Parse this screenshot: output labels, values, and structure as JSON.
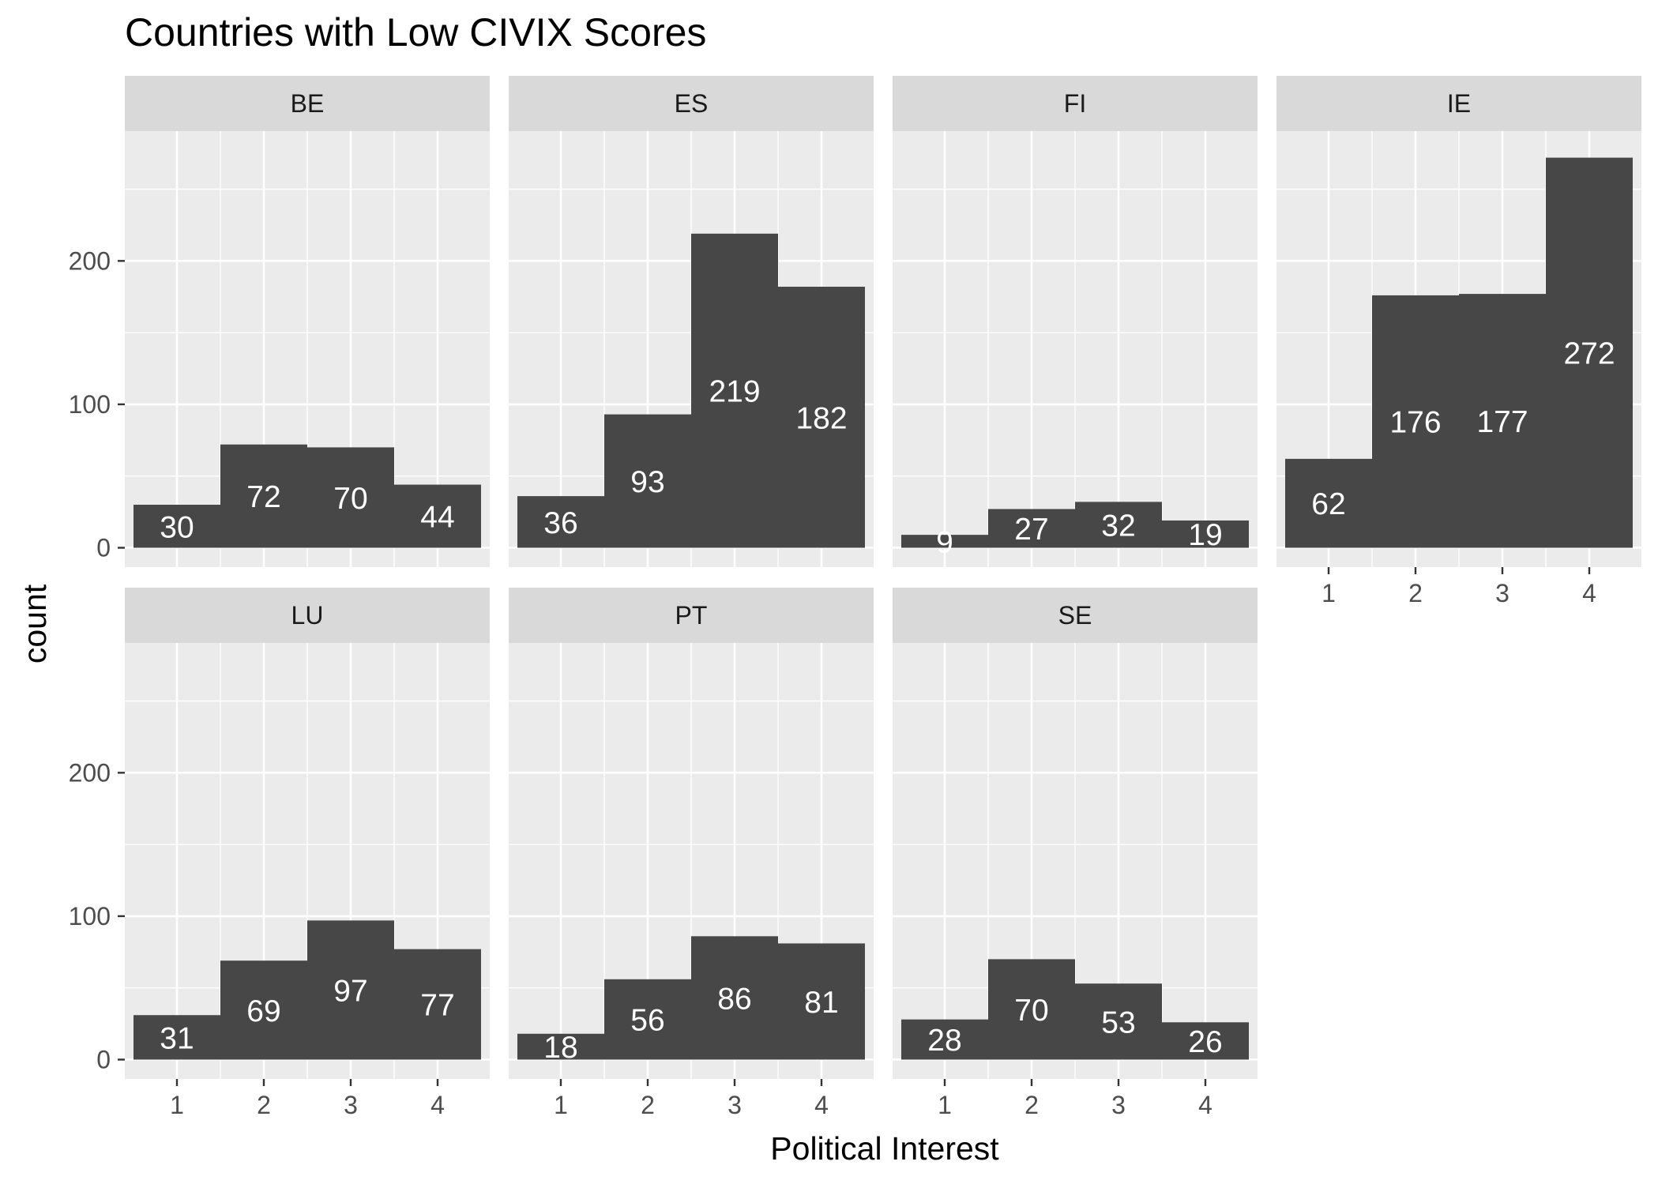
{
  "chart_data": {
    "type": "bar",
    "title": "Countries with Low CIVIX Scores",
    "xlabel": "Political Interest",
    "ylabel": "count",
    "categories": [
      "1",
      "2",
      "3",
      "4"
    ],
    "ylim": [
      0,
      290
    ],
    "yticks": [
      0,
      100,
      200
    ],
    "grid": true,
    "bar_color": "#474747",
    "panel_background": "#ebebeb",
    "strip_background": "#d9d9d9",
    "label_color": "#ffffff",
    "facets": [
      {
        "name": "BE",
        "values": [
          30,
          72,
          70,
          44
        ]
      },
      {
        "name": "ES",
        "values": [
          36,
          93,
          219,
          182
        ]
      },
      {
        "name": "FI",
        "values": [
          9,
          27,
          32,
          19
        ]
      },
      {
        "name": "IE",
        "values": [
          62,
          176,
          177,
          272
        ]
      },
      {
        "name": "LU",
        "values": [
          31,
          69,
          97,
          77
        ]
      },
      {
        "name": "PT",
        "values": [
          18,
          56,
          86,
          81
        ]
      },
      {
        "name": "SE",
        "values": [
          28,
          70,
          53,
          26
        ]
      }
    ]
  }
}
